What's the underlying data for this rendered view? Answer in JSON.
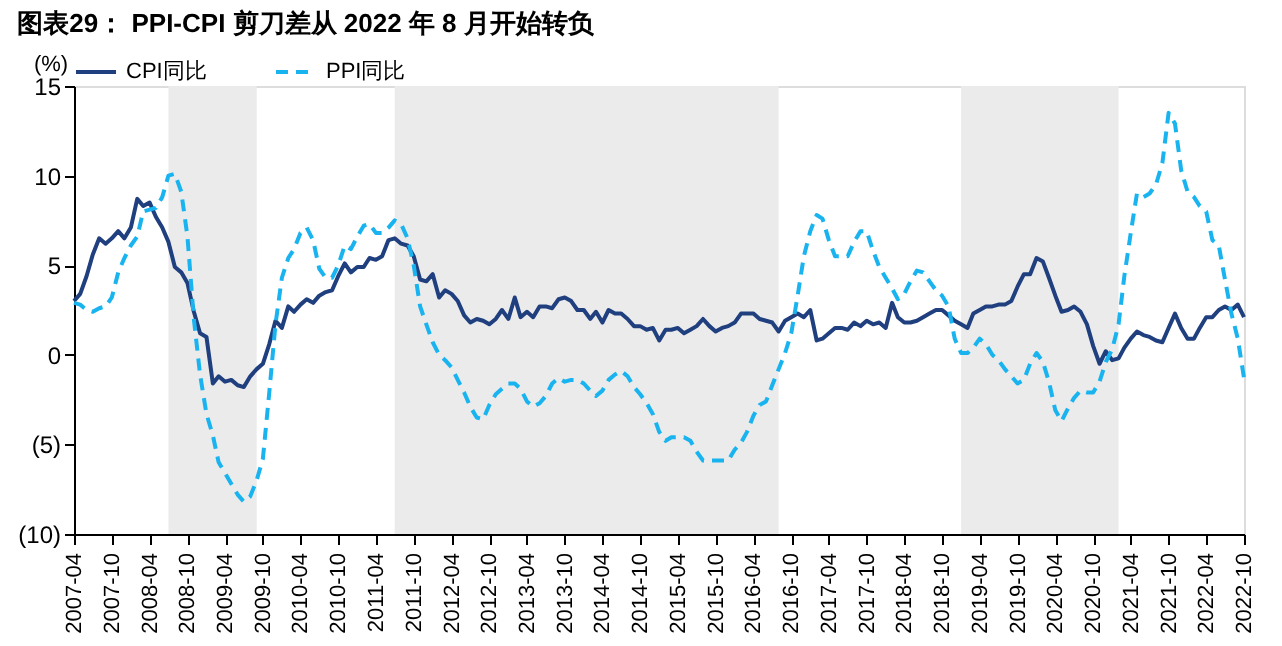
{
  "chart_data": {
    "type": "line",
    "title": "图表29：  PPI-CPI 剪刀差从 2022 年 8 月开始转负",
    "ylabel": "(%)",
    "x": [
      "2007-04",
      "2007-05",
      "2007-06",
      "2007-07",
      "2007-08",
      "2007-09",
      "2007-10",
      "2007-11",
      "2007-12",
      "2008-01",
      "2008-02",
      "2008-03",
      "2008-04",
      "2008-05",
      "2008-06",
      "2008-07",
      "2008-08",
      "2008-09",
      "2008-10",
      "2008-11",
      "2008-12",
      "2009-01",
      "2009-02",
      "2009-03",
      "2009-04",
      "2009-05",
      "2009-06",
      "2009-07",
      "2009-08",
      "2009-09",
      "2009-10",
      "2009-11",
      "2009-12",
      "2010-01",
      "2010-02",
      "2010-03",
      "2010-04",
      "2010-05",
      "2010-06",
      "2010-07",
      "2010-08",
      "2010-09",
      "2010-10",
      "2010-11",
      "2010-12",
      "2011-01",
      "2011-02",
      "2011-03",
      "2011-04",
      "2011-05",
      "2011-06",
      "2011-07",
      "2011-08",
      "2011-09",
      "2011-10",
      "2011-11",
      "2011-12",
      "2012-01",
      "2012-02",
      "2012-03",
      "2012-04",
      "2012-05",
      "2012-06",
      "2012-07",
      "2012-08",
      "2012-09",
      "2012-10",
      "2012-11",
      "2012-12",
      "2013-01",
      "2013-02",
      "2013-03",
      "2013-04",
      "2013-05",
      "2013-06",
      "2013-07",
      "2013-08",
      "2013-09",
      "2013-10",
      "2013-11",
      "2013-12",
      "2014-01",
      "2014-02",
      "2014-03",
      "2014-04",
      "2014-05",
      "2014-06",
      "2014-07",
      "2014-08",
      "2014-09",
      "2014-10",
      "2014-11",
      "2014-12",
      "2015-01",
      "2015-02",
      "2015-03",
      "2015-04",
      "2015-05",
      "2015-06",
      "2015-07",
      "2015-08",
      "2015-09",
      "2015-10",
      "2015-11",
      "2015-12",
      "2016-01",
      "2016-02",
      "2016-03",
      "2016-04",
      "2016-05",
      "2016-06",
      "2016-07",
      "2016-08",
      "2016-09",
      "2016-10",
      "2016-11",
      "2016-12",
      "2017-01",
      "2017-02",
      "2017-03",
      "2017-04",
      "2017-05",
      "2017-06",
      "2017-07",
      "2017-08",
      "2017-09",
      "2017-10",
      "2017-11",
      "2017-12",
      "2018-01",
      "2018-02",
      "2018-03",
      "2018-04",
      "2018-05",
      "2018-06",
      "2018-07",
      "2018-08",
      "2018-09",
      "2018-10",
      "2018-11",
      "2018-12",
      "2019-01",
      "2019-02",
      "2019-03",
      "2019-04",
      "2019-05",
      "2019-06",
      "2019-07",
      "2019-08",
      "2019-09",
      "2019-10",
      "2019-11",
      "2019-12",
      "2020-01",
      "2020-02",
      "2020-03",
      "2020-04",
      "2020-05",
      "2020-06",
      "2020-07",
      "2020-08",
      "2020-09",
      "2020-10",
      "2020-11",
      "2020-12",
      "2021-01",
      "2021-02",
      "2021-03",
      "2021-04",
      "2021-05",
      "2021-06",
      "2021-07",
      "2021-08",
      "2021-09",
      "2021-10",
      "2021-11",
      "2021-12",
      "2022-01",
      "2022-02",
      "2022-03",
      "2022-04",
      "2022-05",
      "2022-06",
      "2022-07",
      "2022-08",
      "2022-09",
      "2022-10"
    ],
    "series": [
      {
        "name": "CPI同比",
        "color": "#1f3f7f",
        "line_style": "solid",
        "values": [
          3.0,
          3.4,
          4.4,
          5.6,
          6.5,
          6.2,
          6.5,
          6.9,
          6.5,
          7.1,
          8.7,
          8.3,
          8.5,
          7.7,
          7.1,
          6.3,
          4.9,
          4.6,
          4.0,
          2.4,
          1.2,
          1.0,
          -1.6,
          -1.2,
          -1.5,
          -1.4,
          -1.7,
          -1.8,
          -1.2,
          -0.8,
          -0.5,
          0.6,
          1.9,
          1.5,
          2.7,
          2.4,
          2.8,
          3.1,
          2.9,
          3.3,
          3.5,
          3.6,
          4.4,
          5.1,
          4.6,
          4.9,
          4.9,
          5.4,
          5.3,
          5.5,
          6.4,
          6.5,
          6.2,
          6.1,
          5.5,
          4.2,
          4.1,
          4.5,
          3.2,
          3.6,
          3.4,
          3.0,
          2.2,
          1.8,
          2.0,
          1.9,
          1.7,
          2.0,
          2.5,
          2.0,
          3.2,
          2.1,
          2.4,
          2.1,
          2.7,
          2.7,
          2.6,
          3.1,
          3.2,
          3.0,
          2.5,
          2.5,
          2.0,
          2.4,
          1.8,
          2.5,
          2.3,
          2.3,
          2.0,
          1.6,
          1.6,
          1.4,
          1.5,
          0.8,
          1.4,
          1.4,
          1.5,
          1.2,
          1.4,
          1.6,
          2.0,
          1.6,
          1.3,
          1.5,
          1.6,
          1.8,
          2.3,
          2.3,
          2.3,
          2.0,
          1.9,
          1.8,
          1.3,
          1.9,
          2.1,
          2.3,
          2.1,
          2.5,
          0.8,
          0.9,
          1.2,
          1.5,
          1.5,
          1.4,
          1.8,
          1.6,
          1.9,
          1.7,
          1.8,
          1.5,
          2.9,
          2.1,
          1.8,
          1.8,
          1.9,
          2.1,
          2.3,
          2.5,
          2.5,
          2.2,
          1.9,
          1.7,
          1.5,
          2.3,
          2.5,
          2.7,
          2.7,
          2.8,
          2.8,
          3.0,
          3.8,
          4.5,
          4.5,
          5.4,
          5.2,
          4.3,
          3.3,
          2.4,
          2.5,
          2.7,
          2.4,
          1.7,
          0.5,
          -0.5,
          0.2,
          -0.3,
          -0.2,
          0.4,
          0.9,
          1.3,
          1.1,
          1.0,
          0.8,
          0.7,
          1.5,
          2.3,
          1.5,
          0.9,
          0.9,
          1.5,
          2.1,
          2.1,
          2.5,
          2.7,
          2.5,
          2.8,
          2.1
        ]
      },
      {
        "name": "PPI同比",
        "color": "#19b4f0",
        "line_style": "dashed",
        "values": [
          2.9,
          2.8,
          2.5,
          2.4,
          2.6,
          2.7,
          3.2,
          4.6,
          5.4,
          6.1,
          6.6,
          8.0,
          8.1,
          8.2,
          8.8,
          10.0,
          10.1,
          9.1,
          6.6,
          2.0,
          -1.1,
          -3.3,
          -4.5,
          -6.0,
          -6.6,
          -7.2,
          -7.8,
          -8.2,
          -7.9,
          -7.0,
          -5.8,
          -2.1,
          1.7,
          4.3,
          5.4,
          5.9,
          6.8,
          7.1,
          6.4,
          4.8,
          4.3,
          4.3,
          5.0,
          6.1,
          5.9,
          6.6,
          7.2,
          7.3,
          6.8,
          6.8,
          7.1,
          7.5,
          7.3,
          6.5,
          5.0,
          2.7,
          1.7,
          0.7,
          0.0,
          -0.3,
          -0.7,
          -1.4,
          -2.1,
          -2.9,
          -3.5,
          -3.6,
          -2.8,
          -2.2,
          -1.9,
          -1.6,
          -1.6,
          -1.9,
          -2.6,
          -2.9,
          -2.7,
          -2.3,
          -1.6,
          -1.3,
          -1.5,
          -1.4,
          -1.4,
          -1.6,
          -2.0,
          -2.3,
          -2.0,
          -1.4,
          -1.1,
          -0.9,
          -1.2,
          -1.8,
          -2.2,
          -2.7,
          -3.3,
          -4.3,
          -4.8,
          -4.6,
          -4.6,
          -4.6,
          -4.8,
          -5.4,
          -5.9,
          -5.9,
          -5.9,
          -5.9,
          -5.9,
          -5.3,
          -4.9,
          -4.3,
          -3.4,
          -2.8,
          -2.6,
          -1.7,
          -0.8,
          0.1,
          1.2,
          3.3,
          5.5,
          6.9,
          7.8,
          7.6,
          6.4,
          5.5,
          5.5,
          5.5,
          6.3,
          6.9,
          6.9,
          5.8,
          4.9,
          4.3,
          3.7,
          3.1,
          3.4,
          4.1,
          4.7,
          4.6,
          4.1,
          3.6,
          3.3,
          2.7,
          0.9,
          0.1,
          0.1,
          0.4,
          0.9,
          0.6,
          0.0,
          -0.3,
          -0.8,
          -1.2,
          -1.6,
          -1.4,
          -0.5,
          0.1,
          -0.4,
          -1.5,
          -3.1,
          -3.7,
          -3.0,
          -2.4,
          -2.0,
          -2.1,
          -2.1,
          -1.5,
          -0.4,
          0.3,
          1.7,
          4.4,
          6.8,
          9.0,
          8.8,
          9.0,
          9.5,
          10.7,
          13.5,
          12.9,
          10.3,
          9.1,
          8.8,
          8.3,
          8.0,
          6.4,
          6.1,
          4.2,
          2.3,
          0.9,
          -1.3
        ]
      }
    ],
    "ylim": [
      -10,
      15
    ],
    "yticks": [
      {
        "value": -10,
        "label": "(10)"
      },
      {
        "value": -5,
        "label": "(5)"
      },
      0,
      5,
      10,
      15
    ],
    "xlim": [
      "2007-04",
      "2022-10"
    ],
    "xticks": [
      "2007-04",
      "2007-10",
      "2008-04",
      "2008-10",
      "2009-04",
      "2009-10",
      "2010-04",
      "2010-10",
      "2011-04",
      "2011-10",
      "2012-04",
      "2012-10",
      "2013-04",
      "2013-10",
      "2014-04",
      "2014-10",
      "2015-04",
      "2015-10",
      "2016-04",
      "2016-10",
      "2017-04",
      "2017-10",
      "2018-04",
      "2018-10",
      "2019-04",
      "2019-10",
      "2020-04",
      "2020-10",
      "2021-04",
      "2021-10",
      "2022-04",
      "2022-10"
    ],
    "bands": [
      {
        "axis": "x",
        "from": "2008-07",
        "to": "2009-09",
        "color": "#ebebeb"
      },
      {
        "axis": "x",
        "from": "2011-07",
        "to": "2016-08",
        "color": "#ebebeb"
      },
      {
        "axis": "x",
        "from": "2019-01",
        "to": "2021-02",
        "color": "#ebebeb"
      }
    ],
    "legend": "top",
    "grid": false,
    "marker": "none"
  }
}
